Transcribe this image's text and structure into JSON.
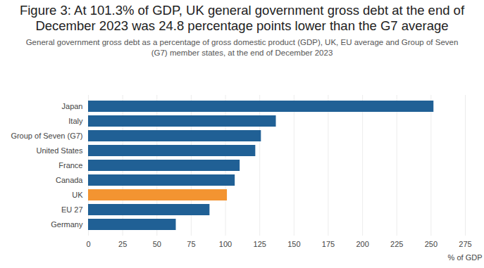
{
  "chart_data": {
    "type": "bar",
    "orientation": "horizontal",
    "title": "Figure 3: At 101.3% of GDP, UK general government gross debt at the end of December 2023 was 24.8 percentage points lower than the G7 average",
    "subtitle": "General government gross debt as a percentage of gross domestic product (GDP), UK, EU average and Group of Seven (G7) member states, at the end of December 2023",
    "categories": [
      "Japan",
      "Italy",
      "Group of Seven (G7)",
      "United States",
      "France",
      "Canada",
      "UK",
      "EU 27",
      "Germany"
    ],
    "values": [
      252,
      137,
      126.1,
      122,
      110.6,
      107,
      101.3,
      88.6,
      64
    ],
    "colors": [
      "#206095",
      "#206095",
      "#206095",
      "#206095",
      "#206095",
      "#206095",
      "#f39431",
      "#206095",
      "#206095"
    ],
    "xlabel": "% of GDP",
    "xlim": [
      0,
      275
    ],
    "xticks": [
      0,
      25,
      50,
      75,
      100,
      125,
      150,
      175,
      200,
      225,
      250,
      275
    ],
    "grid": true
  }
}
